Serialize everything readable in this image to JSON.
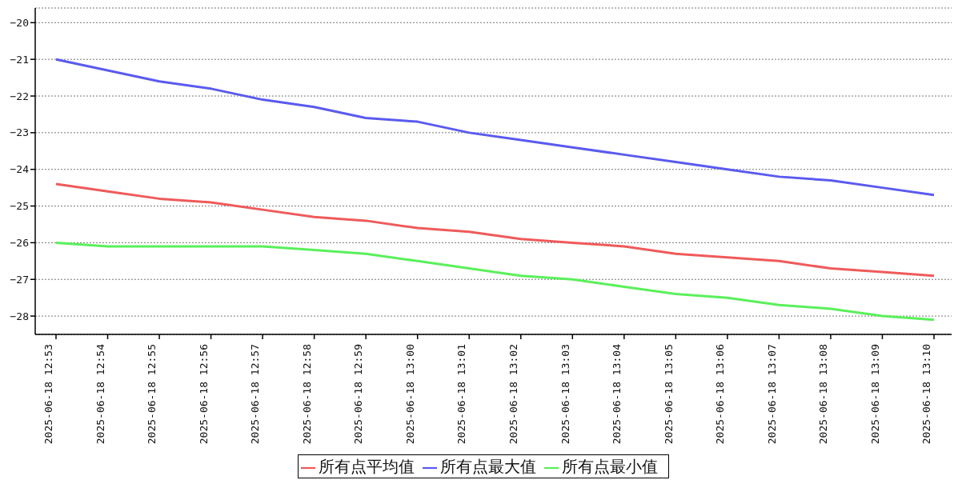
{
  "chart_data": {
    "type": "line",
    "categories": [
      "2025-06-18 12:53",
      "2025-06-18 12:54",
      "2025-06-18 12:55",
      "2025-06-18 12:56",
      "2025-06-18 12:57",
      "2025-06-18 12:58",
      "2025-06-18 12:59",
      "2025-06-18 13:00",
      "2025-06-18 13:01",
      "2025-06-18 13:02",
      "2025-06-18 13:03",
      "2025-06-18 13:04",
      "2025-06-18 13:05",
      "2025-06-18 13:06",
      "2025-06-18 13:07",
      "2025-06-18 13:08",
      "2025-06-18 13:09",
      "2025-06-18 13:10"
    ],
    "series": [
      {
        "name": "所有点平均值",
        "color": "#f05a5a",
        "values": [
          -24.4,
          -24.6,
          -24.8,
          -24.9,
          -25.1,
          -25.3,
          -25.4,
          -25.6,
          -25.7,
          -25.9,
          -26.0,
          -26.1,
          -26.3,
          -26.4,
          -26.5,
          -26.7,
          -26.8,
          -26.9
        ]
      },
      {
        "name": "所有点最大值",
        "color": "#5a5af0",
        "values": [
          -21.0,
          -21.3,
          -21.6,
          -21.8,
          -22.1,
          -22.3,
          -22.6,
          -22.7,
          -23.0,
          -23.2,
          -23.4,
          -23.6,
          -23.8,
          -24.0,
          -24.2,
          -24.3,
          -24.5,
          -24.7
        ]
      },
      {
        "name": "所有点最小值",
        "color": "#5af05a",
        "values": [
          -26.0,
          -26.1,
          -26.1,
          -26.1,
          -26.1,
          -26.2,
          -26.3,
          -26.5,
          -26.7,
          -26.9,
          -27.0,
          -27.2,
          -27.4,
          -27.5,
          -27.7,
          -27.8,
          -28.0,
          -28.1
        ]
      }
    ],
    "ylim": [
      -28.5,
      -19.6
    ],
    "yticks": [
      -28,
      -27,
      -26,
      -25,
      -24,
      -23,
      -22,
      -21,
      -20
    ],
    "grid": "y",
    "legend": "bottom",
    "marker": "none",
    "line_style": "solid"
  }
}
